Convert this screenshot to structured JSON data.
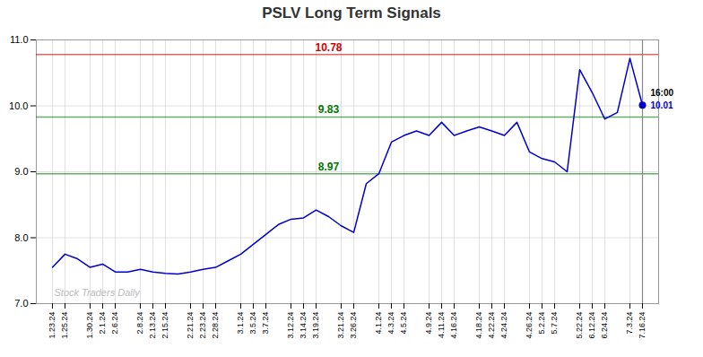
{
  "chart_data": {
    "type": "line",
    "title": "PSLV Long Term Signals",
    "categories": [
      "1.23.24",
      "1.25.24",
      null,
      "1.30.24",
      "2.1.24",
      "2.6.24",
      null,
      "2.8.24",
      "2.13.24",
      "2.15.24",
      null,
      "2.21.24",
      "2.23.24",
      "2.28.24",
      null,
      "3.1.24",
      "3.5.24",
      "3.7.24",
      null,
      "3.12.24",
      "3.14.24",
      "3.19.24",
      null,
      "3.21.24",
      "3.26.24",
      null,
      "4.1.24",
      "4.3.24",
      "4.5.24",
      null,
      "4.9.24",
      "4.11.24",
      "4.16.24",
      null,
      "4.18.24",
      "4.22.24",
      "4.24.24",
      null,
      "4.26.24",
      "5.2.24",
      "5.7.24",
      null,
      "5.22.24",
      "6.12.24",
      "6.24.24",
      null,
      "7.3.24",
      "7.16.24"
    ],
    "values": [
      7.55,
      7.75,
      7.68,
      7.55,
      7.6,
      7.48,
      7.48,
      7.52,
      7.48,
      7.46,
      7.45,
      7.48,
      7.52,
      7.55,
      7.65,
      7.75,
      7.9,
      8.05,
      8.2,
      8.28,
      8.3,
      8.42,
      8.32,
      8.18,
      8.08,
      8.82,
      8.97,
      9.45,
      9.55,
      9.62,
      9.55,
      9.75,
      9.55,
      9.62,
      9.68,
      9.62,
      9.55,
      9.75,
      9.3,
      9.2,
      9.15,
      9.0,
      10.55,
      10.2,
      9.8,
      9.9,
      10.72,
      10.01
    ],
    "color": "#0000cc",
    "ylim": [
      7,
      11
    ],
    "yticks": [
      7,
      8,
      9,
      10,
      11
    ],
    "grid": true,
    "hlines": [
      {
        "value": 10.78,
        "label": "10.78",
        "color": "#cc0000"
      },
      {
        "value": 9.83,
        "label": "9.83",
        "color": "#007700"
      },
      {
        "value": 8.97,
        "label": "8.97",
        "color": "#007700"
      }
    ],
    "annotations": [
      {
        "text": "16:00",
        "color": "#000000"
      },
      {
        "text": "10.01",
        "color": "#0000cc"
      }
    ],
    "watermark": "Stock Traders Daily"
  }
}
